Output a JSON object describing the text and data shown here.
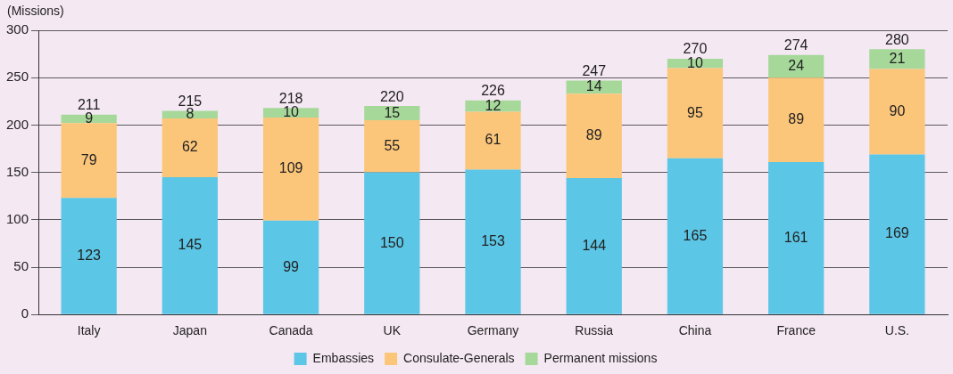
{
  "chart_data": {
    "type": "bar",
    "stacked": true,
    "ylabel": "(Missions)",
    "categories": [
      "Italy",
      "Japan",
      "Canada",
      "UK",
      "Germany",
      "Russia",
      "China",
      "France",
      "U.S."
    ],
    "series": [
      {
        "name": "Embassies",
        "color": "#5cc6e6",
        "values": [
          123,
          145,
          99,
          150,
          153,
          144,
          165,
          161,
          169
        ]
      },
      {
        "name": "Consulate-Generals",
        "color": "#fcc67a",
        "values": [
          79,
          62,
          109,
          55,
          61,
          89,
          95,
          89,
          90
        ]
      },
      {
        "name": "Permanent missions",
        "color": "#a6d89a",
        "values": [
          9,
          8,
          10,
          15,
          12,
          14,
          10,
          24,
          21
        ]
      }
    ],
    "totals": [
      "211",
      "215",
      "218",
      "220",
      "226",
      "247",
      "270",
      "274",
      "280"
    ],
    "data_labels": true,
    "ylim": [
      0,
      300
    ],
    "yticks": [
      0,
      50,
      100,
      150,
      200,
      250,
      300
    ],
    "grid": "y",
    "legend": "bottom"
  }
}
